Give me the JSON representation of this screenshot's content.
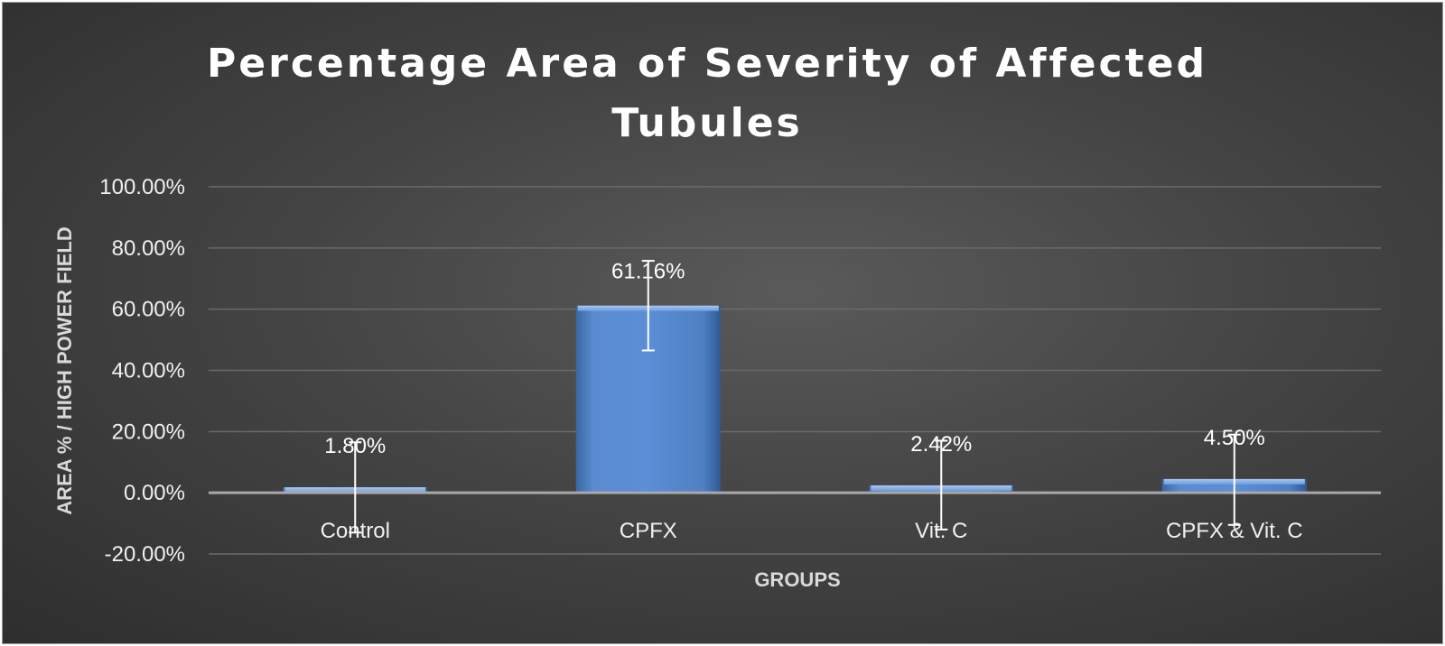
{
  "chart_data": {
    "type": "bar",
    "title_lines": [
      "Percentage Area of Severity of Affected",
      "Tubules"
    ],
    "xlabel": "GROUPS",
    "ylabel": "AREA %  / HIGH POWER FIELD",
    "categories": [
      "Control",
      "CPFX",
      "Vit. C",
      "CPFX & Vit. C"
    ],
    "values": [
      1.8,
      61.16,
      2.42,
      4.5
    ],
    "value_labels": [
      "1.80%",
      "61.16%",
      "2.42%",
      "4.50%"
    ],
    "error_bars": [
      {
        "low": -13.0,
        "high": 16.5
      },
      {
        "low": 46.5,
        "high": 75.8
      },
      {
        "low": -12.0,
        "high": 17.0
      },
      {
        "low": -10.5,
        "high": 19.0
      }
    ],
    "ylim": [
      -20,
      100
    ],
    "yticks": [
      -20,
      0,
      20,
      40,
      60,
      80,
      100
    ],
    "ytick_labels": [
      "-20.00%",
      "0.00%",
      "20.00%",
      "40.00%",
      "60.00%",
      "80.00%",
      "100.00%"
    ],
    "grid": true,
    "bar_color": "#4f81bd",
    "background_color": "#404040"
  }
}
